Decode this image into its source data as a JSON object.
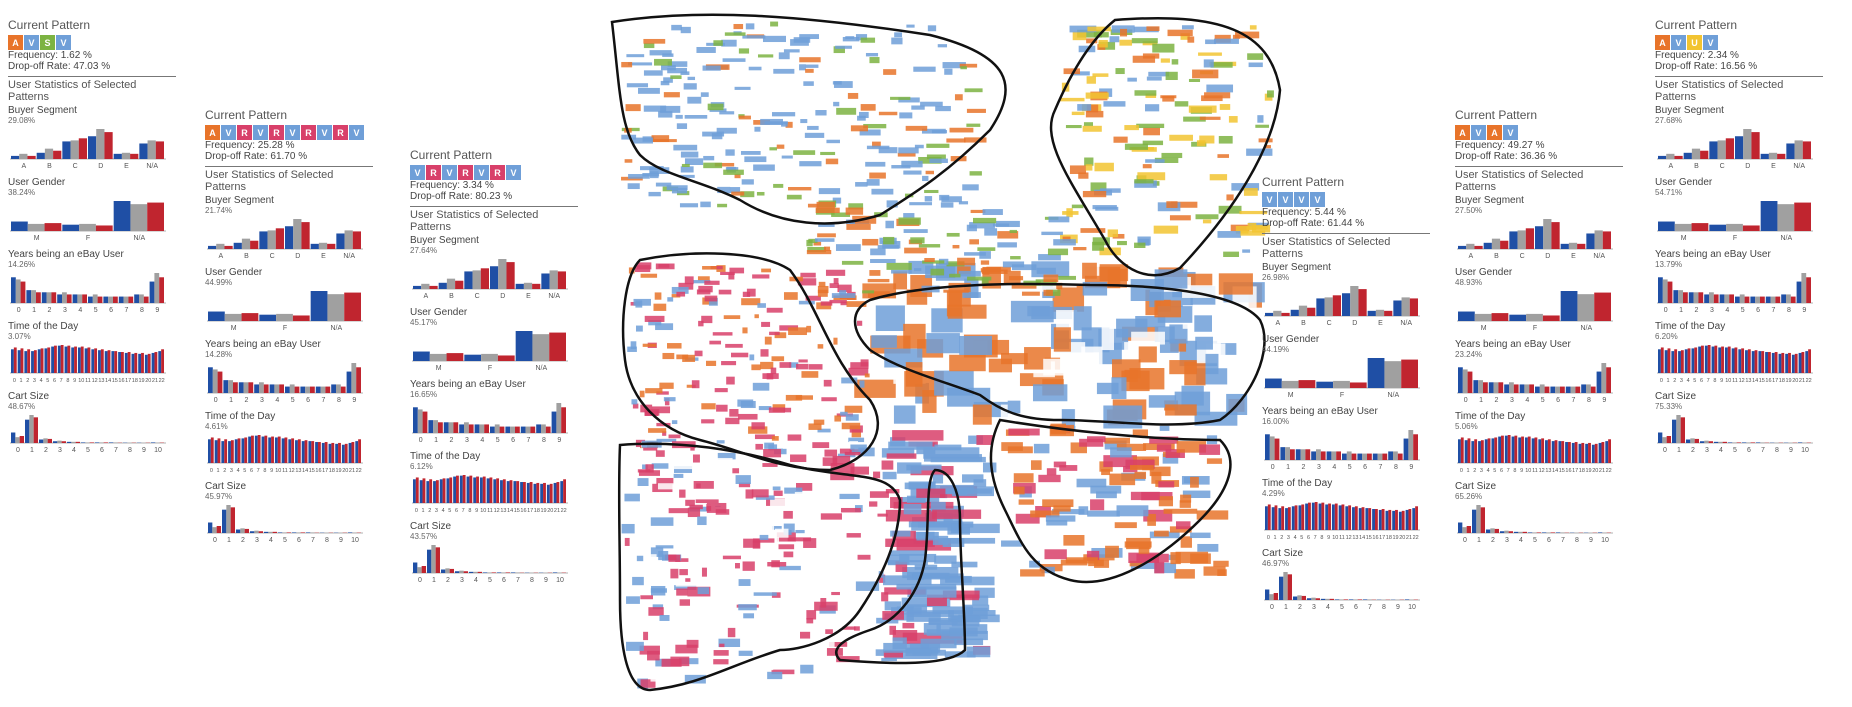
{
  "colors": {
    "A": "#e8742a",
    "V": "#6f9fd8",
    "S": "#7cb342",
    "R": "#d8406a",
    "U": "#f2c431",
    "red": "#c0252f",
    "blue": "#1f4fa5",
    "gray": "#a0a0a0",
    "region_line": "#111111",
    "letter": "#1b3a8a"
  },
  "labels": {
    "current_pattern": "Current Pattern",
    "user_stats": "User Statistics of Selected Patterns",
    "buyer_segment": "Buyer Segment",
    "user_gender": "User Gender",
    "years_ebay": "Years being an eBay User",
    "time_of_day": "Time of the Day",
    "cart_size": "Cart Size"
  },
  "panels": [
    {
      "id": "A",
      "tokens": [
        "A",
        "V",
        "S",
        "V"
      ],
      "frequency": "Frequency: 1.62 %",
      "dropoff": "Drop-off Rate: 47.03 %",
      "pct": {
        "buyer": "29.08%",
        "gender": "38.24%",
        "years": "14.26%",
        "time": "3.07%",
        "cart": "48.67%"
      }
    },
    {
      "id": "B",
      "tokens": [
        "A",
        "V",
        "R",
        "V",
        "R",
        "V",
        "R",
        "V",
        "R",
        "V"
      ],
      "frequency": "Frequency: 25.28 %",
      "dropoff": "Drop-off Rate: 61.70 %",
      "pct": {
        "buyer": "21.74%",
        "gender": "44.99%",
        "years": "14.28%",
        "time": "4.61%",
        "cart": "45.97%"
      }
    },
    {
      "id": "C",
      "tokens": [
        "V",
        "R",
        "V",
        "R",
        "V",
        "R",
        "V"
      ],
      "frequency": "Frequency: 3.34 %",
      "dropoff": "Drop-off Rate: 80.23 %",
      "pct": {
        "buyer": "27.64%",
        "gender": "45.17%",
        "years": "16.65%",
        "time": "6.12%",
        "cart": "43.57%"
      }
    },
    {
      "id": "D",
      "tokens": [
        "V",
        "V",
        "V",
        "V"
      ],
      "frequency": "Frequency: 5.44 %",
      "dropoff": "Drop-off Rate: 61.44 %",
      "pct": {
        "buyer": "26.98%",
        "gender": "44.19%",
        "years": "16.00%",
        "time": "4.29%",
        "cart": "46.97%"
      }
    },
    {
      "id": "E",
      "tokens": [
        "A",
        "V",
        "A",
        "V"
      ],
      "frequency": "Frequency: 49.27 %",
      "dropoff": "Drop-off Rate: 36.36 %",
      "pct": {
        "buyer": "27.50%",
        "gender": "48.93%",
        "years": "23.24%",
        "time": "5.06%",
        "cart": "65.26%"
      }
    },
    {
      "id": "F",
      "tokens": [
        "A",
        "V",
        "U",
        "V"
      ],
      "frequency": "Frequency: 2.34 %",
      "dropoff": "Drop-off Rate: 16.56 %",
      "pct": {
        "buyer": "27.68%",
        "gender": "54.71%",
        "years": "13.79%",
        "time": "6.20%",
        "cart": "75.33%"
      }
    }
  ],
  "chart_data": [
    {
      "type": "bar",
      "title": "Buyer Segment",
      "categories": [
        "A",
        "B",
        "C",
        "D",
        "E",
        "N/A"
      ],
      "series": [
        {
          "values": [
            3,
            6,
            17,
            22,
            5,
            15
          ]
        },
        {
          "values": [
            5,
            10,
            18,
            29,
            6,
            18
          ]
        },
        {
          "values": [
            3,
            8,
            20,
            26,
            5,
            17
          ]
        }
      ]
    },
    {
      "type": "bar",
      "title": "User Gender",
      "categories": [
        "M",
        "F",
        "N/A"
      ],
      "series": [
        {
          "values": [
            12,
            8,
            38
          ]
        },
        {
          "values": [
            9,
            9,
            34
          ]
        },
        {
          "values": [
            10,
            7,
            36
          ]
        }
      ]
    },
    {
      "type": "bar",
      "title": "Years being an eBay User",
      "categories": [
        "0",
        "1",
        "2",
        "3",
        "4",
        "5",
        "6",
        "7",
        "8",
        "9"
      ],
      "series": [
        {
          "values": [
            12,
            6,
            5,
            4,
            4,
            3,
            3,
            3,
            4,
            10
          ]
        },
        {
          "values": [
            11,
            6,
            5,
            5,
            4,
            4,
            3,
            3,
            4,
            14
          ]
        },
        {
          "values": [
            10,
            5,
            5,
            4,
            4,
            3,
            3,
            3,
            3,
            12
          ]
        }
      ]
    },
    {
      "type": "bar",
      "title": "Time of the Day",
      "categories": [
        "0",
        "1",
        "2",
        "3",
        "4",
        "5",
        "6",
        "7",
        "8",
        "9",
        "10",
        "11",
        "12",
        "13",
        "14",
        "15",
        "16",
        "17",
        "18",
        "19",
        "20",
        "21",
        "22"
      ],
      "series": [
        {
          "values": [
            2.6,
            2.5,
            2.4,
            2.4,
            2.6,
            2.7,
            2.9,
            3.0,
            2.9,
            2.8,
            2.8,
            2.7,
            2.6,
            2.5,
            2.4,
            2.4,
            2.3,
            2.2,
            2.1,
            2.1,
            2.0,
            2.2,
            2.4
          ]
        },
        {
          "values": [
            2.8,
            2.7,
            2.6,
            2.5,
            2.7,
            2.8,
            3.0,
            3.07,
            3.0,
            2.9,
            2.9,
            2.8,
            2.7,
            2.6,
            2.5,
            2.4,
            2.3,
            2.3,
            2.2,
            2.2,
            2.1,
            2.3,
            2.6
          ]
        }
      ]
    },
    {
      "type": "bar",
      "title": "Cart Size",
      "categories": [
        "0",
        "1",
        "2",
        "3",
        "4",
        "5",
        "6",
        "7",
        "8",
        "9",
        "10"
      ],
      "series": [
        {
          "values": [
            18,
            40,
            6,
            3,
            2,
            1,
            1,
            1,
            0.5,
            0.5,
            1
          ]
        },
        {
          "values": [
            10,
            48,
            8,
            4,
            2,
            1,
            1,
            1,
            0.5,
            0.5,
            0.8
          ]
        },
        {
          "values": [
            12,
            44,
            7,
            3,
            2,
            1,
            1,
            0.5,
            0.5,
            0.5,
            0.6
          ]
        }
      ]
    }
  ]
}
